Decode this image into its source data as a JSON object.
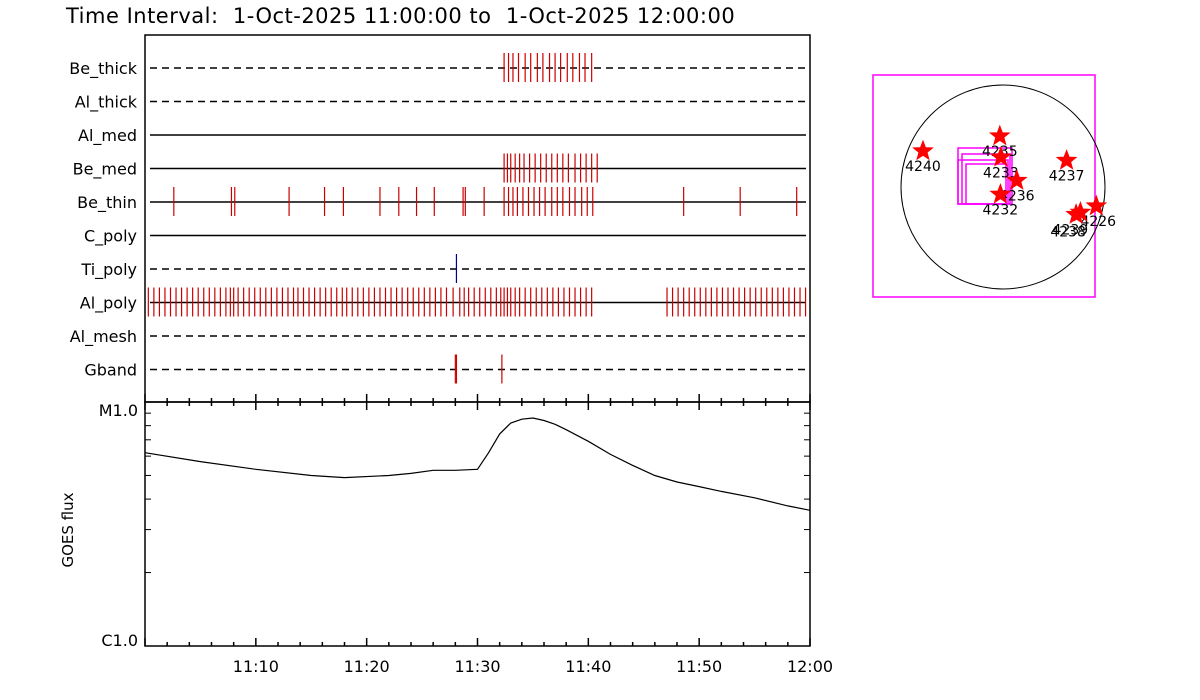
{
  "title": "Time Interval:  1-Oct-2025 11:00:00 to  1-Oct-2025 12:00:00",
  "chart_data": [
    {
      "type": "timeline",
      "x_start": "11:00",
      "x_end": "12:00",
      "x_ticks": [
        "11:10",
        "11:20",
        "11:30",
        "11:40",
        "11:50",
        "12:00"
      ],
      "rows": [
        {
          "label": "Be_thick",
          "style": "dashed",
          "color": "#cc0000",
          "events": [
            32.4,
            32.8,
            33.2,
            33.7,
            34.3,
            34.8,
            35.4,
            35.9,
            36.5,
            37.0,
            37.5,
            38.1,
            38.6,
            39.2,
            39.7,
            40.3
          ]
        },
        {
          "label": "Al_thick",
          "style": "dashed",
          "color": "#cc0000",
          "events": []
        },
        {
          "label": "Al_med",
          "style": "solid",
          "color": "#cc0000",
          "events": []
        },
        {
          "label": "Be_med",
          "style": "solid",
          "color": "#cc0000",
          "events": [
            32.4,
            32.7,
            33.0,
            33.4,
            33.8,
            34.2,
            34.7,
            35.2,
            35.7,
            36.2,
            36.7,
            37.2,
            37.7,
            38.2,
            38.8,
            39.3,
            39.8,
            40.3,
            40.8
          ]
        },
        {
          "label": "Be_thin",
          "style": "solid",
          "color": "#cc0000",
          "events": [
            2.6,
            7.8,
            8.1,
            13.0,
            16.2,
            17.9,
            21.2,
            22.9,
            24.5,
            26.1,
            28.7,
            28.9,
            30.6,
            32.4,
            32.8,
            33.2,
            33.6,
            34.1,
            34.6,
            35.1,
            35.6,
            36.1,
            36.7,
            37.2,
            37.7,
            38.3,
            38.8,
            39.4,
            39.9,
            40.4,
            48.6,
            53.7,
            58.8
          ]
        },
        {
          "label": "C_poly",
          "style": "solid",
          "color": "#cc0000",
          "events": []
        },
        {
          "label": "Ti_poly",
          "style": "dashed",
          "color": "#00008b",
          "events": [
            28.1
          ]
        },
        {
          "label": "Al_poly",
          "style": "solid",
          "color": "#cc0000",
          "events": [
            0.3,
            0.8,
            1.3,
            1.8,
            2.3,
            2.8,
            3.3,
            3.8,
            4.3,
            4.8,
            5.3,
            5.8,
            6.3,
            6.8,
            7.3,
            7.7,
            8.0,
            8.4,
            8.9,
            9.4,
            9.9,
            10.4,
            10.9,
            11.4,
            11.9,
            12.4,
            12.9,
            13.4,
            13.8,
            14.3,
            14.8,
            15.3,
            15.8,
            16.3,
            16.8,
            17.3,
            17.8,
            18.2,
            18.7,
            19.2,
            19.7,
            20.2,
            20.7,
            21.2,
            21.7,
            22.2,
            22.7,
            23.2,
            23.7,
            24.2,
            24.7,
            25.2,
            25.7,
            26.2,
            26.7,
            27.2,
            27.8,
            28.4,
            28.8,
            29.2,
            29.7,
            30.2,
            30.7,
            31.2,
            31.7,
            32.1,
            32.4,
            32.7,
            33.0,
            33.4,
            33.8,
            34.3,
            34.8,
            35.3,
            35.8,
            36.3,
            36.8,
            37.3,
            37.8,
            38.3,
            38.8,
            39.3,
            39.8,
            40.3,
            47.1,
            47.6,
            48.1,
            48.6,
            49.1,
            49.6,
            50.1,
            50.6,
            51.1,
            51.6,
            52.1,
            52.6,
            53.1,
            53.6,
            54.1,
            54.6,
            55.1,
            55.6,
            56.1,
            56.6,
            57.1,
            57.6,
            58.1,
            58.6,
            59.1,
            59.6
          ]
        },
        {
          "label": "Al_mesh",
          "style": "dashed",
          "color": "#cc0000",
          "events": []
        },
        {
          "label": "Gband",
          "style": "dashed",
          "color": "#cc0000",
          "events": [
            28.0,
            28.1,
            32.2
          ]
        }
      ]
    },
    {
      "type": "line",
      "ylabel": "GOES flux",
      "y_scale": "log",
      "ylim": [
        1e-06,
        1e-05
      ],
      "y_tick_labels": [
        "C1.0",
        "M1.0"
      ],
      "x_ticks": [
        "11:10",
        "11:20",
        "11:30",
        "11:40",
        "11:50",
        "12:00"
      ],
      "x": [
        0,
        5,
        10,
        15,
        18,
        22,
        24,
        26,
        28,
        30,
        31,
        32,
        33,
        34,
        35,
        36,
        37,
        38,
        40,
        42,
        44,
        46,
        48,
        50,
        52,
        55,
        58,
        60
      ],
      "y": [
        6.2e-06,
        5.7e-06,
        5.3e-06,
        5e-06,
        4.9e-06,
        5e-06,
        5.1e-06,
        5.25e-06,
        5.25e-06,
        5.3e-06,
        6.2e-06,
        7.4e-06,
        8.2e-06,
        8.5e-06,
        8.6e-06,
        8.4e-06,
        8.1e-06,
        7.7e-06,
        6.9e-06,
        6.1e-06,
        5.5e-06,
        5e-06,
        4.7e-06,
        4.5e-06,
        4.3e-06,
        4.05e-06,
        3.75e-06,
        3.6e-06
      ]
    },
    {
      "type": "scatter",
      "description_free": true,
      "markers": [
        {
          "label": "4240",
          "x": -755,
          "y": 340
        },
        {
          "label": "4235",
          "x": -30,
          "y": 480
        },
        {
          "label": "4233",
          "x": -20,
          "y": 280
        },
        {
          "label": "4236",
          "x": 130,
          "y": 60
        },
        {
          "label": "4232",
          "x": -25,
          "y": -70
        },
        {
          "label": "4237",
          "x": 600,
          "y": 250
        },
        {
          "label": "4226",
          "x": 880,
          "y": -180
        },
        {
          "label": "4238",
          "x": 690,
          "y": -260
        },
        {
          "label": "4239",
          "x": 730,
          "y": -240
        }
      ]
    }
  ]
}
